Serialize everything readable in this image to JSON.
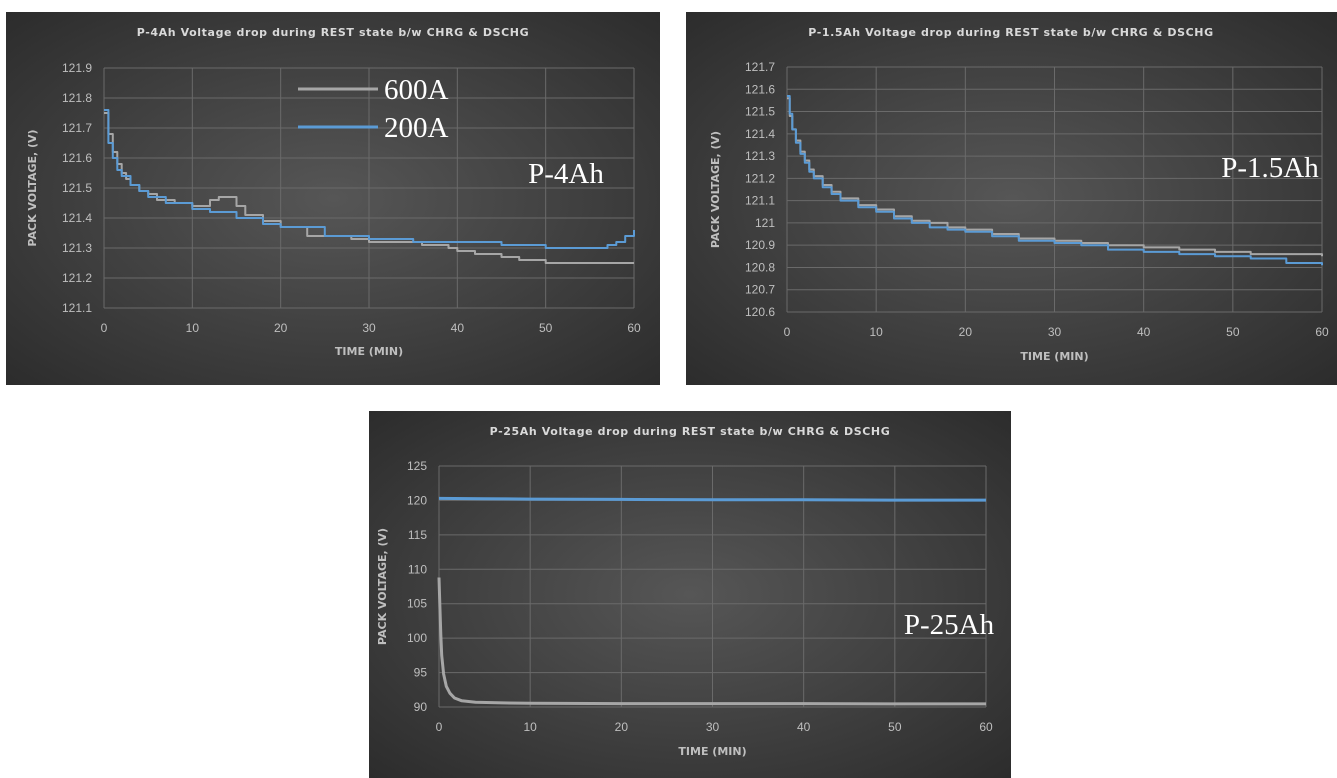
{
  "colors": {
    "series_600A": "#a6a6a6",
    "series_200A": "#5b9bd5",
    "gridline": "#6a6a6a",
    "text": "#bfbfbf"
  },
  "chart_data": [
    {
      "type": "line",
      "title": "P-4Ah Voltage drop during REST state b/w CHRG & DSCHG",
      "xlabel": "TIME (MIN)",
      "ylabel": "PACK VOLTAGE, (V)",
      "pack_label": "P-4Ah",
      "xlim": [
        0,
        60
      ],
      "ylim": [
        121.1,
        121.9
      ],
      "xticks": [
        "0",
        "10",
        "20",
        "30",
        "40",
        "50",
        "60"
      ],
      "yticks": [
        "121.1",
        "121.2",
        "121.3",
        "121.4",
        "121.5",
        "121.6",
        "121.7",
        "121.8",
        "121.9"
      ],
      "grid": true,
      "legend": {
        "placement": "top-center",
        "entries": [
          {
            "name": "600A",
            "color": "#a6a6a6"
          },
          {
            "name": "200A",
            "color": "#5b9bd5"
          }
        ]
      },
      "series": [
        {
          "name": "600A",
          "color": "#a6a6a6",
          "x": [
            0,
            0.5,
            1,
            1.5,
            2,
            2.5,
            3,
            4,
            5,
            6,
            8,
            10,
            11,
            12,
            13,
            14,
            15,
            16,
            18,
            20,
            23,
            25,
            28,
            30,
            33,
            36,
            39,
            40,
            42,
            45,
            47,
            50,
            55,
            60
          ],
          "y": [
            121.75,
            121.68,
            121.62,
            121.58,
            121.55,
            121.53,
            121.51,
            121.49,
            121.48,
            121.46,
            121.45,
            121.44,
            121.44,
            121.46,
            121.47,
            121.47,
            121.44,
            121.41,
            121.39,
            121.37,
            121.34,
            121.34,
            121.33,
            121.32,
            121.32,
            121.31,
            121.3,
            121.29,
            121.28,
            121.27,
            121.26,
            121.25,
            121.25,
            121.25
          ]
        },
        {
          "name": "200A",
          "color": "#5b9bd5",
          "x": [
            0,
            0.5,
            1,
            1.5,
            2,
            3,
            4,
            5,
            7,
            10,
            12,
            15,
            18,
            20,
            25,
            30,
            35,
            40,
            45,
            50,
            55,
            57,
            58,
            59,
            60
          ],
          "y": [
            121.76,
            121.65,
            121.6,
            121.56,
            121.54,
            121.51,
            121.49,
            121.47,
            121.45,
            121.43,
            121.42,
            121.4,
            121.38,
            121.37,
            121.34,
            121.33,
            121.32,
            121.32,
            121.31,
            121.3,
            121.3,
            121.31,
            121.32,
            121.34,
            121.36
          ]
        }
      ]
    },
    {
      "type": "line",
      "title": "P-1.5Ah Voltage drop during REST state b/w CHRG & DSCHG",
      "xlabel": "TIME (MIN)",
      "ylabel": "PACK VOLTAGE, (V)",
      "pack_label": "P-1.5Ah",
      "xlim": [
        0,
        60
      ],
      "ylim": [
        120.6,
        121.7
      ],
      "xticks": [
        "0",
        "10",
        "20",
        "30",
        "40",
        "50",
        "60"
      ],
      "yticks": [
        "120.6",
        "120.7",
        "120.8",
        "120.9",
        "121",
        "121.1",
        "121.2",
        "121.3",
        "121.4",
        "121.5",
        "121.6",
        "121.7"
      ],
      "grid": true,
      "series": [
        {
          "name": "600A",
          "color": "#a6a6a6",
          "x": [
            0,
            0.3,
            0.6,
            1,
            1.5,
            2,
            2.5,
            3,
            4,
            5,
            6,
            8,
            10,
            12,
            14,
            16,
            18,
            20,
            23,
            26,
            30,
            33,
            36,
            40,
            44,
            48,
            52,
            56,
            60
          ],
          "y": [
            121.56,
            121.48,
            121.42,
            121.37,
            121.32,
            121.28,
            121.24,
            121.21,
            121.17,
            121.14,
            121.11,
            121.08,
            121.06,
            121.03,
            121.01,
            121.0,
            120.98,
            120.97,
            120.95,
            120.93,
            120.92,
            120.91,
            120.9,
            120.89,
            120.88,
            120.87,
            120.86,
            120.86,
            120.85
          ]
        },
        {
          "name": "200A",
          "color": "#5b9bd5",
          "x": [
            0,
            0.3,
            0.6,
            1,
            1.5,
            2,
            2.5,
            3,
            4,
            5,
            6,
            8,
            10,
            12,
            14,
            16,
            18,
            20,
            23,
            26,
            30,
            33,
            36,
            40,
            44,
            48,
            52,
            56,
            60
          ],
          "y": [
            121.57,
            121.49,
            121.42,
            121.36,
            121.31,
            121.27,
            121.23,
            121.2,
            121.16,
            121.13,
            121.1,
            121.07,
            121.05,
            121.02,
            121.0,
            120.98,
            120.97,
            120.96,
            120.94,
            120.92,
            120.91,
            120.9,
            120.88,
            120.87,
            120.86,
            120.85,
            120.84,
            120.82,
            120.81
          ]
        }
      ]
    },
    {
      "type": "line",
      "title": "P-25Ah Voltage drop during REST state b/w CHRG & DSCHG",
      "xlabel": "TIME (MIN)",
      "ylabel": "PACK VOLTAGE, (V)",
      "pack_label": "P-25Ah",
      "xlim": [
        0,
        60
      ],
      "ylim": [
        90,
        125
      ],
      "xticks": [
        "0",
        "10",
        "20",
        "30",
        "40",
        "50",
        "60"
      ],
      "yticks": [
        "90",
        "95",
        "100",
        "105",
        "110",
        "115",
        "120",
        "125"
      ],
      "grid": true,
      "series": [
        {
          "name": "600A",
          "color": "#a6a6a6",
          "x": [
            0,
            0.1,
            0.2,
            0.3,
            0.5,
            0.8,
            1.2,
            1.7,
            2.5,
            4,
            7,
            10,
            20,
            30,
            40,
            50,
            60
          ],
          "y": [
            108.8,
            104.5,
            100.5,
            97.5,
            94.8,
            93.0,
            92.0,
            91.3,
            90.9,
            90.7,
            90.6,
            90.55,
            90.5,
            90.5,
            90.5,
            90.45,
            90.45
          ]
        },
        {
          "name": "200A",
          "color": "#5b9bd5",
          "x": [
            0,
            5,
            10,
            20,
            30,
            40,
            50,
            60
          ],
          "y": [
            120.3,
            120.25,
            120.2,
            120.15,
            120.1,
            120.1,
            120.05,
            120.05
          ]
        }
      ]
    }
  ]
}
